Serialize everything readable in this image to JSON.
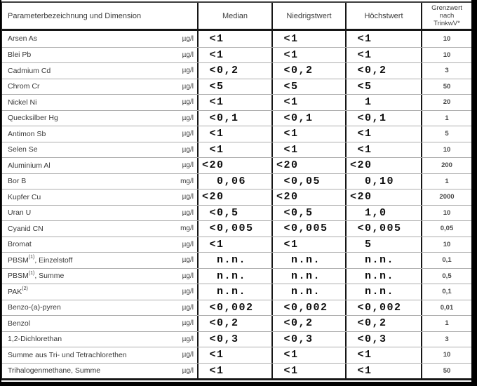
{
  "table": {
    "header": {
      "parameter": "Parameterbezeichnung und Dimension",
      "median": "Median",
      "lowest": "Niedrigstwert",
      "highest": "Höchstwert",
      "limit_lines": [
        "Grenzwert",
        "nach",
        "TrinkwV*"
      ]
    },
    "rows": [
      {
        "name": "Arsen As",
        "sup": "",
        "rest": "",
        "unit": "µg/l",
        "median": "<1",
        "lowest": "<1",
        "highest": "<1",
        "limit": "10"
      },
      {
        "name": "Blei Pb",
        "sup": "",
        "rest": "",
        "unit": "µg/l",
        "median": "<1",
        "lowest": "<1",
        "highest": "<1",
        "limit": "10"
      },
      {
        "name": "Cadmium Cd",
        "sup": "",
        "rest": "",
        "unit": "µg/l",
        "median": "<0,2",
        "lowest": "<0,2",
        "highest": "<0,2",
        "limit": "3"
      },
      {
        "name": "Chrom Cr",
        "sup": "",
        "rest": "",
        "unit": "µg/l",
        "median": "<5",
        "lowest": "<5",
        "highest": "<5",
        "limit": "50"
      },
      {
        "name": "Nickel Ni",
        "sup": "",
        "rest": "",
        "unit": "µg/l",
        "median": "<1",
        "lowest": "<1",
        "highest": "1",
        "limit": "20"
      },
      {
        "name": "Quecksilber Hg",
        "sup": "",
        "rest": "",
        "unit": "µg/l",
        "median": "<0,1",
        "lowest": "<0,1",
        "highest": "<0,1",
        "limit": "1"
      },
      {
        "name": "Antimon Sb",
        "sup": "",
        "rest": "",
        "unit": "µg/l",
        "median": "<1",
        "lowest": "<1",
        "highest": "<1",
        "limit": "5"
      },
      {
        "name": "Selen Se",
        "sup": "",
        "rest": "",
        "unit": "µg/l",
        "median": "<1",
        "lowest": "<1",
        "highest": "<1",
        "limit": "10"
      },
      {
        "name": "Aluminium Al",
        "sup": "",
        "rest": "",
        "unit": "µg/l",
        "median": "<20",
        "lowest": "<20",
        "highest": "<20",
        "limit": "200"
      },
      {
        "name": "Bor B",
        "sup": "",
        "rest": "",
        "unit": "mg/l",
        "median": "0,06",
        "lowest": "<0,05",
        "highest": "0,10",
        "limit": "1"
      },
      {
        "name": "Kupfer Cu",
        "sup": "",
        "rest": "",
        "unit": "µg/l",
        "median": "<20",
        "lowest": "<20",
        "highest": "<20",
        "limit": "2000"
      },
      {
        "name": "Uran U",
        "sup": "",
        "rest": "",
        "unit": "µg/l",
        "median": "<0,5",
        "lowest": "<0,5",
        "highest": "1,0",
        "limit": "10"
      },
      {
        "name": "Cyanid CN",
        "sup": "",
        "rest": "",
        "unit": "mg/l",
        "median": "<0,005",
        "lowest": "<0,005",
        "highest": "<0,005",
        "limit": "0,05"
      },
      {
        "name": "Bromat",
        "sup": "",
        "rest": "",
        "unit": "µg/l",
        "median": "<1",
        "lowest": "<1",
        "highest": "5",
        "limit": "10"
      },
      {
        "name": "PBSM",
        "sup": "(1)",
        "rest": ", Einzelstoff",
        "unit": "µg/l",
        "median": "n.n.",
        "lowest": "n.n.",
        "highest": "n.n.",
        "limit": "0,1"
      },
      {
        "name": "PBSM",
        "sup": "(1)",
        "rest": ", Summe",
        "unit": "µg/l",
        "median": "n.n.",
        "lowest": "n.n.",
        "highest": "n.n.",
        "limit": "0,5"
      },
      {
        "name": "PAK",
        "sup": "(2)",
        "rest": "",
        "unit": "µg/l",
        "median": "n.n.",
        "lowest": "n.n.",
        "highest": "n.n.",
        "limit": "0,1"
      },
      {
        "name": "Benzo-(a)-pyren",
        "sup": "",
        "rest": "",
        "unit": "µg/l",
        "median": "<0,002",
        "lowest": "<0,002",
        "highest": "<0,002",
        "limit": "0,01"
      },
      {
        "name": "Benzol",
        "sup": "",
        "rest": "",
        "unit": "µg/l",
        "median": "<0,2",
        "lowest": "<0,2",
        "highest": "<0,2",
        "limit": "1"
      },
      {
        "name": "1,2-Dichlorethan",
        "sup": "",
        "rest": "",
        "unit": "µg/l",
        "median": "<0,3",
        "lowest": "<0,3",
        "highest": "<0,3",
        "limit": "3"
      },
      {
        "name": "Summe aus Tri- und Tetrachlorethen",
        "sup": "",
        "rest": "",
        "unit": "µg/l",
        "median": "<1",
        "lowest": "<1",
        "highest": "<1",
        "limit": "10"
      },
      {
        "name": "Trihalogenmethane, Summe",
        "sup": "",
        "rest": "",
        "unit": "µg/l",
        "median": "<1",
        "lowest": "<1",
        "highest": "<1",
        "limit": "50"
      }
    ]
  }
}
